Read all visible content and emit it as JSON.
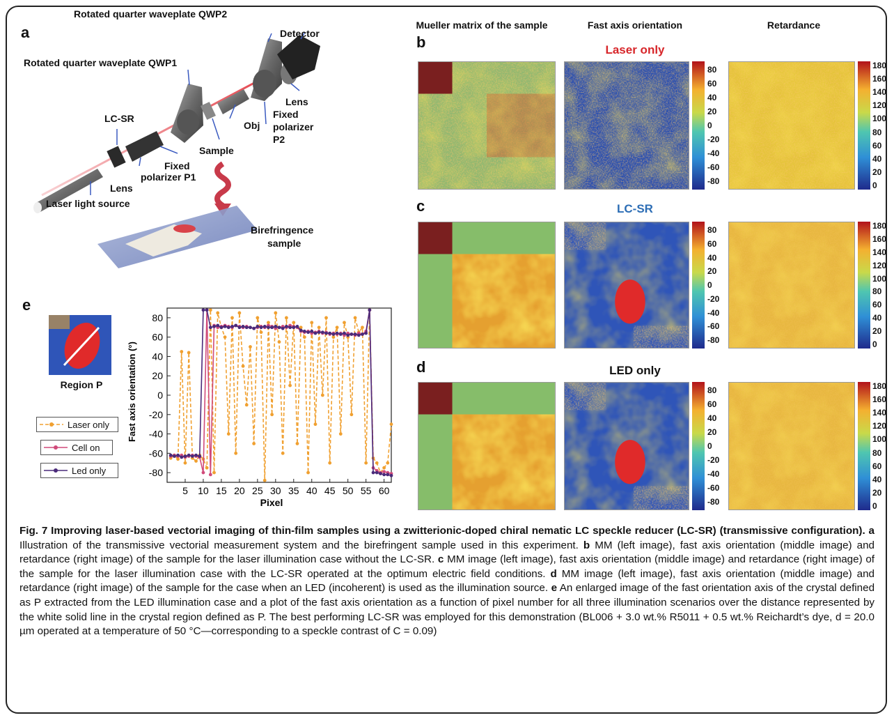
{
  "panel_letters": {
    "a": "a",
    "b": "b",
    "c": "c",
    "d": "d",
    "e": "e"
  },
  "column_headers": {
    "mm": "Mueller matrix of the sample",
    "fast": "Fast axis orientation",
    "ret": "Retardance"
  },
  "row_titles": {
    "b": {
      "text": "Laser only",
      "color": "#d7262a"
    },
    "c": {
      "text": "LC-SR",
      "color": "#2c6db5"
    },
    "d": {
      "text": "LED only",
      "color": "#111111"
    }
  },
  "setup_labels": {
    "qwp2": "Rotated quarter waveplate QWP2",
    "detector": "Detector",
    "qwp1": "Rotated quarter waveplate QWP1",
    "lens_right": "Lens",
    "lcsr": "LC-SR",
    "fixed_p2_1": "Fixed",
    "fixed_p2_2": "polarizer",
    "fixed_p2_3": "P2",
    "obj": "Obj",
    "sample": "Sample",
    "fixed_p1_1": "Fixed",
    "fixed_p1_2": "polarizer P1",
    "lens_left": "Lens",
    "laser": "Laser light source",
    "bire_1": "Birefringence",
    "bire_2": "sample"
  },
  "region_label": "Region P",
  "fast_colorbar_ticks": [
    "80",
    "60",
    "40",
    "20",
    "0",
    "-20",
    "-40",
    "-60",
    "-80"
  ],
  "ret_colorbar_ticks": [
    "180",
    "160",
    "140",
    "120",
    "100",
    "80",
    "60",
    "40",
    "20",
    "0"
  ],
  "chart_data": {
    "type": "line",
    "xlabel": "Pixel",
    "ylabel": "Fast axis orientation (°)",
    "xlim": [
      0,
      62
    ],
    "ylim": [
      -90,
      90
    ],
    "xticks": [
      "5",
      "10",
      "15",
      "20",
      "25",
      "30",
      "35",
      "40",
      "45",
      "50",
      "55",
      "60"
    ],
    "yticks": [
      "80",
      "60",
      "40",
      "20",
      "0",
      "-20",
      "-40",
      "-60",
      "-80"
    ],
    "legend_position": "left",
    "series": [
      {
        "name": "Laser only",
        "color": "#f0a030",
        "dashed": true,
        "x": [
          1,
          2,
          3,
          4,
          5,
          6,
          7,
          8,
          9,
          10,
          11,
          12,
          13,
          14,
          15,
          16,
          17,
          18,
          19,
          20,
          21,
          22,
          23,
          24,
          25,
          26,
          27,
          28,
          29,
          30,
          31,
          32,
          33,
          34,
          35,
          36,
          37,
          38,
          39,
          40,
          41,
          42,
          43,
          44,
          45,
          46,
          47,
          48,
          49,
          50,
          51,
          52,
          53,
          54,
          55,
          56,
          57,
          58,
          59,
          60,
          61,
          62
        ],
        "y": [
          -65,
          -62,
          -66,
          45,
          -70,
          44,
          -65,
          -68,
          -62,
          -66,
          -75,
          88,
          -80,
          85,
          70,
          60,
          -40,
          80,
          -60,
          85,
          30,
          -10,
          50,
          -50,
          80,
          65,
          -88,
          75,
          -20,
          85,
          55,
          -60,
          80,
          10,
          75,
          -50,
          70,
          60,
          -80,
          75,
          -30,
          70,
          0,
          80,
          -70,
          60,
          70,
          -40,
          75,
          60,
          -20,
          80,
          65,
          70,
          -70,
          88,
          -65,
          -70,
          -80,
          -75,
          -70,
          -30
        ]
      },
      {
        "name": "Cell on",
        "color": "#d04a7a",
        "dashed": false,
        "x": [
          1,
          2,
          3,
          4,
          5,
          6,
          7,
          8,
          9,
          10,
          11,
          12,
          13,
          14,
          15,
          16,
          17,
          18,
          19,
          20,
          21,
          22,
          23,
          24,
          25,
          26,
          27,
          28,
          29,
          30,
          31,
          32,
          33,
          34,
          35,
          36,
          37,
          38,
          39,
          40,
          41,
          42,
          43,
          44,
          45,
          46,
          47,
          48,
          49,
          50,
          51,
          52,
          53,
          54,
          55,
          56,
          57,
          58,
          59,
          60,
          61,
          62
        ],
        "y": [
          -63,
          -62,
          -63,
          -62,
          -64,
          -63,
          -62,
          -63,
          -64,
          -80,
          88,
          -82,
          72,
          70,
          71,
          72,
          71,
          70,
          72,
          71,
          70,
          71,
          70,
          69,
          70,
          71,
          70,
          72,
          71,
          69,
          70,
          71,
          70,
          72,
          71,
          70,
          66,
          65,
          66,
          64,
          65,
          66,
          64,
          65,
          63,
          64,
          63,
          64,
          62,
          64,
          63,
          62,
          64,
          63,
          66,
          88,
          -75,
          -78,
          -80,
          -79,
          -80,
          -81
        ]
      },
      {
        "name": "Led only",
        "color": "#4a2a7a",
        "dashed": false,
        "x": [
          1,
          2,
          3,
          4,
          5,
          6,
          7,
          8,
          9,
          10,
          11,
          12,
          13,
          14,
          15,
          16,
          17,
          18,
          19,
          20,
          21,
          22,
          23,
          24,
          25,
          26,
          27,
          28,
          29,
          30,
          31,
          32,
          33,
          34,
          35,
          36,
          37,
          38,
          39,
          40,
          41,
          42,
          43,
          44,
          45,
          46,
          47,
          48,
          49,
          50,
          51,
          52,
          53,
          54,
          55,
          56,
          57,
          58,
          59,
          60,
          61,
          62
        ],
        "y": [
          -62,
          -63,
          -62,
          -64,
          -63,
          -62,
          -63,
          -62,
          -63,
          88,
          88,
          70,
          71,
          72,
          70,
          71,
          70,
          71,
          72,
          70,
          71,
          70,
          70,
          69,
          71,
          70,
          71,
          70,
          70,
          71,
          70,
          69,
          71,
          70,
          70,
          71,
          67,
          66,
          65,
          66,
          64,
          65,
          65,
          64,
          64,
          63,
          64,
          63,
          64,
          62,
          63,
          63,
          62,
          63,
          64,
          88,
          -80,
          -80,
          -81,
          -82,
          -82,
          -83
        ]
      }
    ]
  },
  "caption": {
    "fig": "Fig. 7",
    "title": " Improving laser-based vectorial imaging of thin-film samples using a zwitterionic-doped chiral nematic LC speckle reducer (LC-SR) (transmissive configuration).",
    "a_label": " a",
    "a_text": " Illustration of the transmissive vectorial measurement system and the birefringent sample used in this experiment.",
    "b_label": " b",
    "b_text": " MM (left image), fast axis orientation (middle image) and retardance (right image) of the sample for the laser illumination case without the LC-SR.",
    "c_label": " c",
    "c_text": " MM image (left image), fast axis orientation (middle image) and retardance (right image) of the sample for the laser illumination case with the LC-SR operated at the optimum electric field conditions.",
    "d_label": " d",
    "d_text": " MM image (left image), fast axis orientation (middle image) and retardance (right image) of the sample for the case when an LED (incoherent) is used as the illumination source.",
    "e_label": " e",
    "e_text": " An enlarged image of the fast orientation axis of the crystal defined as P extracted from the LED illumination case and a plot of the fast axis orientation as a function of pixel number for all three illumination scenarios over the distance represented by the white solid line in the crystal region defined as P. The best performing LC-SR was employed for this demonstration (BL006 + 3.0 wt.% R5011 + 0.5 wt.% Reichardt’s dye, d = 20.0 µm operated at a temperature of 50 °C—corresponding to a speckle contrast of C = 0.09)"
  }
}
